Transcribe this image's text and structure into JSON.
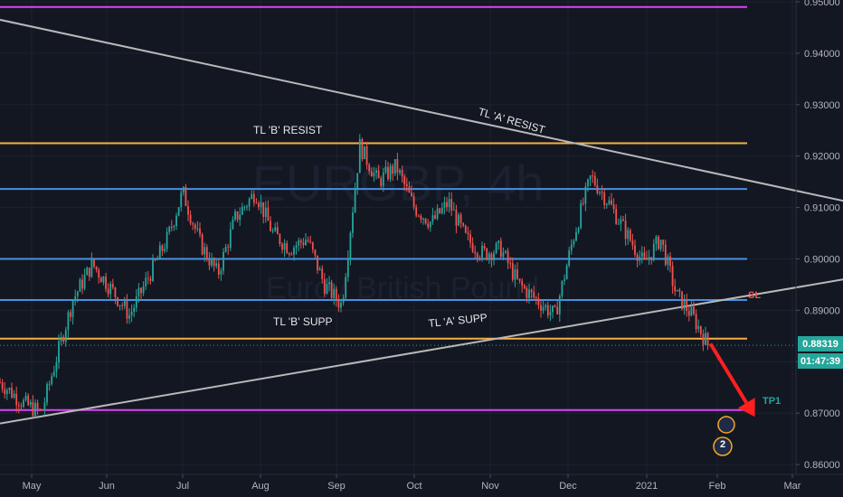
{
  "chart_data": {
    "type": "candlestick",
    "symbol_watermark": "EURGBP, 4h",
    "description_watermark": "Euro / British Pound",
    "y_axis": {
      "ticks": [
        "0.95000",
        "0.94000",
        "0.93000",
        "0.92000",
        "0.91000",
        "0.90000",
        "0.89000",
        "0.88000",
        "0.87000",
        "0.86000"
      ],
      "tick_values": [
        0.95,
        0.94,
        0.93,
        0.92,
        0.91,
        0.9,
        0.89,
        0.88,
        0.87,
        0.86
      ],
      "range": [
        0.8585,
        0.9512
      ]
    },
    "x_axis": {
      "ticks": [
        "May",
        "Jun",
        "Jul",
        "Aug",
        "Sep",
        "Oct",
        "Nov",
        "Dec",
        "2021",
        "Feb",
        "Mar"
      ]
    },
    "current_price": "0.88319",
    "countdown": "01:47:39",
    "horizontal_levels": [
      {
        "price": 0.949,
        "color": "#e040fb"
      },
      {
        "price": 0.9225,
        "color": "#f5b041",
        "label": "TL 'B' RESIST"
      },
      {
        "price": 0.9136,
        "color": "#4a90e2"
      },
      {
        "price": 0.9,
        "color": "#4a90e2"
      },
      {
        "price": 0.892,
        "color": "#4a90e2",
        "label": "SL"
      },
      {
        "price": 0.8845,
        "color": "#f5b041",
        "label": "TL 'B' SUPP"
      },
      {
        "price": 0.8706,
        "color": "#e040fb",
        "label": "TP1"
      }
    ],
    "trendlines": [
      {
        "label": "TL 'A' RESIST",
        "from": [
          "Apr",
          0.9465
        ],
        "to": [
          "Mar",
          0.9113
        ]
      },
      {
        "label": "TL 'A' SUPP",
        "from": [
          "Apr",
          0.868
        ],
        "to": [
          "Mar",
          0.896
        ]
      }
    ],
    "close_path": [
      [
        "Apr 20",
        0.876
      ],
      [
        "Apr 28",
        0.872
      ],
      [
        "May 5",
        0.87
      ],
      [
        "May 12",
        0.882
      ],
      [
        "May 18",
        0.892
      ],
      [
        "May 26",
        0.899
      ],
      [
        "Jun 3",
        0.894
      ],
      [
        "Jun 10",
        0.889
      ],
      [
        "Jun 17",
        0.896
      ],
      [
        "Jun 25",
        0.904
      ],
      [
        "Jul 1",
        0.913
      ],
      [
        "Jul 8",
        0.903
      ],
      [
        "Jul 15",
        0.897
      ],
      [
        "Jul 22",
        0.908
      ],
      [
        "Jul 30",
        0.913
      ],
      [
        "Aug 6",
        0.905
      ],
      [
        "Aug 13",
        0.902
      ],
      [
        "Aug 20",
        0.904
      ],
      [
        "Aug 27",
        0.895
      ],
      [
        "Sep 3",
        0.891
      ],
      [
        "Sep 10",
        0.922
      ],
      [
        "Sep 17",
        0.915
      ],
      [
        "Sep 24",
        0.918
      ],
      [
        "Oct 1",
        0.91
      ],
      [
        "Oct 8",
        0.907
      ],
      [
        "Oct 15",
        0.911
      ],
      [
        "Oct 22",
        0.904
      ],
      [
        "Oct 29",
        0.901
      ],
      [
        "Nov 5",
        0.902
      ],
      [
        "Nov 12",
        0.895
      ],
      [
        "Nov 19",
        0.892
      ],
      [
        "Nov 26",
        0.889
      ],
      [
        "Dec 3",
        0.904
      ],
      [
        "Dec 10",
        0.916
      ],
      [
        "Dec 17",
        0.911
      ],
      [
        "Dec 24",
        0.905
      ],
      [
        "Dec 31",
        0.899
      ],
      [
        "Jan 7",
        0.904
      ],
      [
        "Jan 14",
        0.893
      ],
      [
        "Jan 21",
        0.889
      ],
      [
        "Jan 28",
        0.8832
      ]
    ],
    "projection_arrow": {
      "from": [
        "Jan 29",
        0.8835
      ],
      "to": [
        "Feb 13",
        0.87
      ],
      "color": "#ff1f1f"
    },
    "trade_tags": [
      {
        "text": "SL",
        "color": "#ef5350"
      },
      {
        "text": "TP1",
        "color": "#26a69a"
      }
    ],
    "events_badge": "2"
  }
}
